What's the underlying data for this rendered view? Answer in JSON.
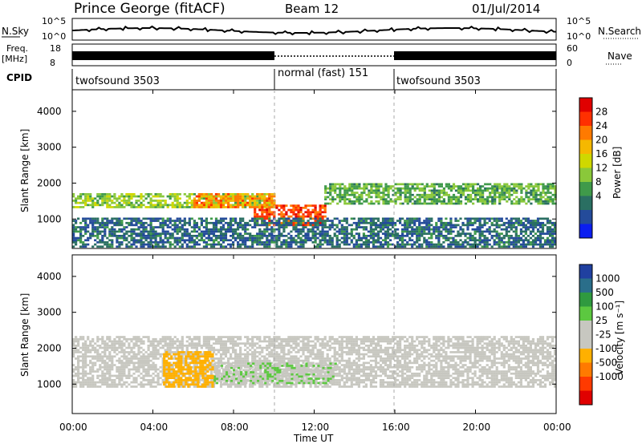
{
  "header": {
    "station": "Prince George (fitACF)",
    "beam": "Beam 12",
    "date": "01/Jul/2014"
  },
  "top_panels": {
    "nsky_label": "N.Sky",
    "nsearch_label": "N.Search",
    "noise_ticks": [
      "10^5",
      "10^0"
    ],
    "freq_label_1": "Freq.",
    "freq_label_2": "[MHz]",
    "freq_ticks": [
      "18",
      "8"
    ],
    "nave_ticks": [
      "60",
      "0"
    ],
    "nave_label": "Nave",
    "cpid_label": "CPID"
  },
  "cpid_segments": [
    {
      "label": "twofsound 3503",
      "start_h": 0,
      "end_h": 10
    },
    {
      "label": "normal (fast) 151",
      "start_h": 10,
      "end_h": 16
    },
    {
      "label": "twofsound 3503",
      "start_h": 16,
      "end_h": 24
    }
  ],
  "axes": {
    "ylabel": "Slant Range [km]",
    "xlabel": "Time UT",
    "x_ticks": [
      "00:00",
      "04:00",
      "08:00",
      "12:00",
      "16:00",
      "20:00",
      "00:00"
    ],
    "y_ticks": [
      "1000",
      "2000",
      "3000",
      "4000"
    ]
  },
  "power_scale": {
    "label": "Power [dB]",
    "ticks": [
      "28",
      "24",
      "20",
      "16",
      "12",
      "8",
      "4"
    ],
    "colors": [
      "#e00000",
      "#ff3000",
      "#ff7a00",
      "#f5b800",
      "#cfd800",
      "#8ac83a",
      "#3f9a4a",
      "#2a6f62",
      "#244b9a",
      "#0b1ef0"
    ]
  },
  "velocity_scale": {
    "label": "Velocity [m s⁻¹]",
    "ticks": [
      "1000",
      "500",
      "100",
      "25",
      "-25",
      "-100",
      "-500",
      "-1000"
    ],
    "colors": [
      "#2040a0",
      "#2a6e8a",
      "#2f9a3f",
      "#5cc840",
      "#c7c7c0",
      "#c7c7c0",
      "#ffb000",
      "#ff7a00",
      "#ff3a00",
      "#e00000"
    ]
  },
  "chart_data": [
    {
      "type": "heatmap",
      "title": "Power",
      "xlabel": "Time UT",
      "ylabel": "Slant Range [km]",
      "xlim": [
        0,
        24
      ],
      "ylim": [
        180,
        4600
      ],
      "colorbar": {
        "label": "Power [dB]",
        "range": [
          0,
          32
        ]
      },
      "bands": [
        {
          "time_range": [
            0,
            10
          ],
          "range_km": [
            1300,
            1700
          ],
          "value_db": 15
        },
        {
          "time_range": [
            9,
            12.5
          ],
          "range_km": [
            800,
            1400
          ],
          "value_db": 28
        },
        {
          "time_range": [
            6,
            10
          ],
          "range_km": [
            1300,
            1700
          ],
          "value_db": 24
        },
        {
          "time_range": [
            12.5,
            24
          ],
          "range_km": [
            1400,
            2000
          ],
          "value_db": 12
        },
        {
          "time_range": [
            0,
            24
          ],
          "range_km": [
            200,
            1000
          ],
          "value_db": 6
        }
      ]
    },
    {
      "type": "heatmap",
      "title": "Velocity",
      "xlabel": "Time UT",
      "ylabel": "Slant Range [km]",
      "xlim": [
        0,
        24
      ],
      "ylim": [
        180,
        4600
      ],
      "colorbar": {
        "label": "Velocity [m s⁻¹]",
        "range": [
          -1000,
          1000
        ]
      },
      "bands": [
        {
          "time_range": [
            0,
            24
          ],
          "range_km": [
            900,
            2300
          ],
          "value_ms": 0
        },
        {
          "time_range": [
            7,
            13
          ],
          "range_km": [
            1000,
            1600
          ],
          "value_ms": 200
        },
        {
          "time_range": [
            4.5,
            7
          ],
          "range_km": [
            900,
            1900
          ],
          "value_ms": -300
        }
      ]
    }
  ]
}
